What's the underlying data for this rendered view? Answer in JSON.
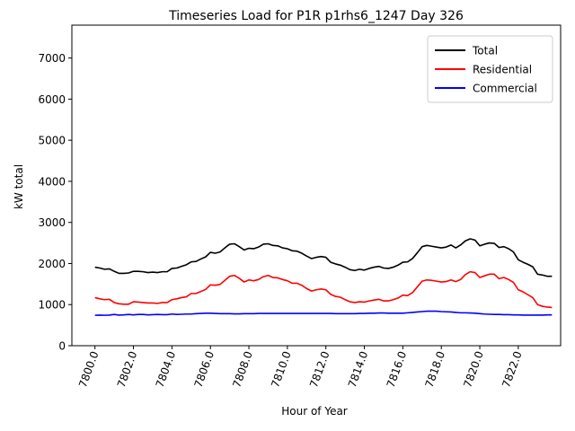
{
  "chart_data": {
    "type": "line",
    "title": "Timeseries Load for P1R p1rhs6_1247  Day 326",
    "xlabel": "Hour of Year",
    "ylabel": "kW total",
    "xlim": [
      7798.8,
      7824.2
    ],
    "ylim": [
      0,
      7800
    ],
    "xticks": [
      7800,
      7802,
      7804,
      7806,
      7808,
      7810,
      7812,
      7814,
      7816,
      7818,
      7820,
      7822
    ],
    "xtick_labels": [
      "7800.0",
      "7802.0",
      "7804.0",
      "7806.0",
      "7808.0",
      "7810.0",
      "7812.0",
      "7814.0",
      "7816.0",
      "7818.0",
      "7820.0",
      "7822.0"
    ],
    "yticks": [
      0,
      1000,
      2000,
      3000,
      4000,
      5000,
      6000,
      7000
    ],
    "ytick_labels": [
      "0",
      "1000",
      "2000",
      "3000",
      "4000",
      "5000",
      "6000",
      "7000"
    ],
    "grid": false,
    "legend_position": "top-right",
    "x": [
      7800.0,
      7800.25,
      7800.5,
      7800.75,
      7801.0,
      7801.25,
      7801.5,
      7801.75,
      7802.0,
      7802.25,
      7802.5,
      7802.75,
      7803.0,
      7803.25,
      7803.5,
      7803.75,
      7804.0,
      7804.25,
      7804.5,
      7804.75,
      7805.0,
      7805.25,
      7805.5,
      7805.75,
      7806.0,
      7806.25,
      7806.5,
      7806.75,
      7807.0,
      7807.25,
      7807.5,
      7807.75,
      7808.0,
      7808.25,
      7808.5,
      7808.75,
      7809.0,
      7809.25,
      7809.5,
      7809.75,
      7810.0,
      7810.25,
      7810.5,
      7810.75,
      7811.0,
      7811.25,
      7811.5,
      7811.75,
      7812.0,
      7812.25,
      7812.5,
      7812.75,
      7813.0,
      7813.25,
      7813.5,
      7813.75,
      7814.0,
      7814.25,
      7814.5,
      7814.75,
      7815.0,
      7815.25,
      7815.5,
      7815.75,
      7816.0,
      7816.25,
      7816.5,
      7816.75,
      7817.0,
      7817.25,
      7817.5,
      7817.75,
      7818.0,
      7818.25,
      7818.5,
      7818.75,
      7819.0,
      7819.25,
      7819.5,
      7819.75,
      7820.0,
      7820.25,
      7820.5,
      7820.75,
      7821.0,
      7821.25,
      7821.5,
      7821.75,
      7822.0,
      7822.25,
      7822.5,
      7822.75,
      7823.0,
      7823.25,
      7823.5,
      7823.75
    ],
    "series": [
      {
        "name": "Total",
        "color": "#000000",
        "values": [
          1910,
          1890,
          1860,
          1870,
          1810,
          1760,
          1760,
          1770,
          1810,
          1810,
          1800,
          1780,
          1790,
          1780,
          1800,
          1800,
          1880,
          1890,
          1930,
          1970,
          2040,
          2050,
          2110,
          2160,
          2270,
          2250,
          2280,
          2380,
          2470,
          2480,
          2410,
          2330,
          2370,
          2360,
          2400,
          2470,
          2480,
          2440,
          2430,
          2380,
          2360,
          2310,
          2300,
          2250,
          2180,
          2120,
          2150,
          2170,
          2150,
          2030,
          1990,
          1960,
          1910,
          1850,
          1830,
          1860,
          1840,
          1880,
          1910,
          1930,
          1890,
          1880,
          1910,
          1960,
          2030,
          2040,
          2120,
          2260,
          2410,
          2440,
          2420,
          2400,
          2380,
          2400,
          2450,
          2380,
          2450,
          2550,
          2600,
          2570,
          2430,
          2470,
          2500,
          2490,
          2390,
          2410,
          2360,
          2280,
          2090,
          2030,
          1980,
          1920,
          1740,
          1720,
          1690,
          1690
        ]
      },
      {
        "name": "Residential",
        "color": "#ff0000",
        "values": [
          1170,
          1140,
          1120,
          1130,
          1050,
          1020,
          1010,
          1010,
          1070,
          1060,
          1050,
          1040,
          1040,
          1030,
          1050,
          1050,
          1120,
          1140,
          1170,
          1190,
          1270,
          1270,
          1320,
          1370,
          1480,
          1470,
          1490,
          1590,
          1690,
          1710,
          1640,
          1550,
          1600,
          1580,
          1610,
          1680,
          1710,
          1660,
          1650,
          1610,
          1580,
          1520,
          1520,
          1470,
          1390,
          1330,
          1360,
          1380,
          1360,
          1250,
          1200,
          1180,
          1120,
          1070,
          1050,
          1070,
          1060,
          1090,
          1110,
          1130,
          1090,
          1090,
          1120,
          1160,
          1230,
          1220,
          1290,
          1430,
          1570,
          1600,
          1590,
          1570,
          1550,
          1560,
          1600,
          1560,
          1610,
          1730,
          1800,
          1780,
          1660,
          1700,
          1740,
          1740,
          1630,
          1660,
          1610,
          1540,
          1360,
          1310,
          1240,
          1170,
          1000,
          960,
          940,
          930
        ]
      },
      {
        "name": "Commercial",
        "color": "#0000ff",
        "values": [
          740,
          745,
          740,
          745,
          760,
          745,
          750,
          760,
          750,
          760,
          760,
          750,
          755,
          760,
          755,
          755,
          770,
          760,
          765,
          770,
          770,
          780,
          785,
          790,
          790,
          785,
          780,
          780,
          780,
          775,
          775,
          780,
          780,
          780,
          785,
          785,
          785,
          785,
          785,
          785,
          785,
          785,
          785,
          785,
          785,
          785,
          785,
          785,
          785,
          785,
          780,
          780,
          780,
          780,
          780,
          785,
          785,
          790,
          790,
          795,
          795,
          790,
          790,
          790,
          790,
          800,
          810,
          820,
          830,
          840,
          840,
          840,
          830,
          825,
          820,
          810,
          800,
          800,
          795,
          790,
          780,
          770,
          765,
          760,
          760,
          755,
          755,
          750,
          750,
          745,
          745,
          745,
          745,
          745,
          750,
          750
        ]
      }
    ]
  }
}
